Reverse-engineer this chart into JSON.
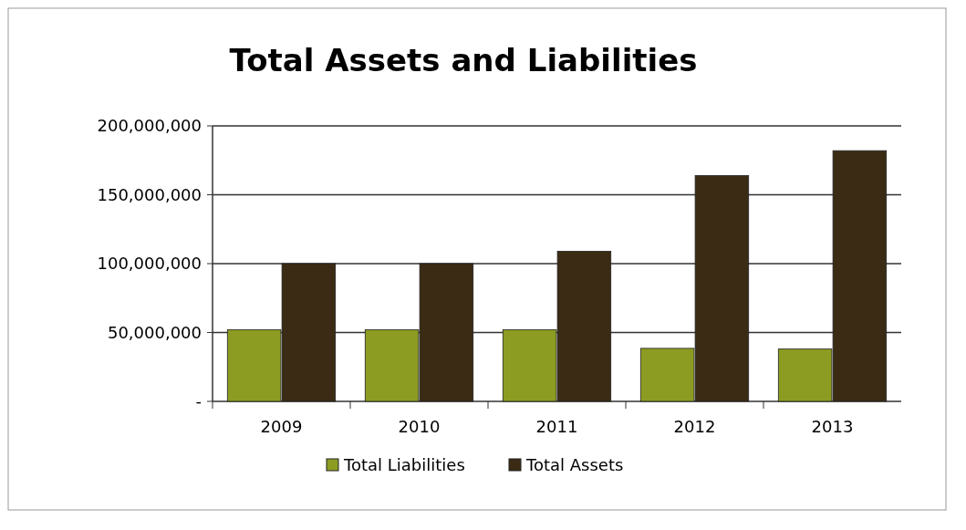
{
  "chart_data": {
    "type": "bar",
    "title": "Total Assets and Liabilities",
    "categories": [
      "2009",
      "2010",
      "2011",
      "2012",
      "2013"
    ],
    "series": [
      {
        "name": "Total Liabilities",
        "color": "#8c9c22",
        "values": [
          52000000,
          52000000,
          52000000,
          38500000,
          38000000
        ]
      },
      {
        "name": "Total Assets",
        "color": "#3b2b14",
        "values": [
          100000000,
          100000000,
          109000000,
          164000000,
          182000000
        ]
      }
    ],
    "ylim": [
      0,
      200000000
    ],
    "yticks": [
      {
        "value": 0,
        "label": "-"
      },
      {
        "value": 50000000,
        "label": "50,000,000"
      },
      {
        "value": 100000000,
        "label": "100,000,000"
      },
      {
        "value": 150000000,
        "label": "150,000,000"
      },
      {
        "value": 200000000,
        "label": "200,000,000"
      }
    ],
    "grid": "y",
    "legend": "bottom"
  }
}
